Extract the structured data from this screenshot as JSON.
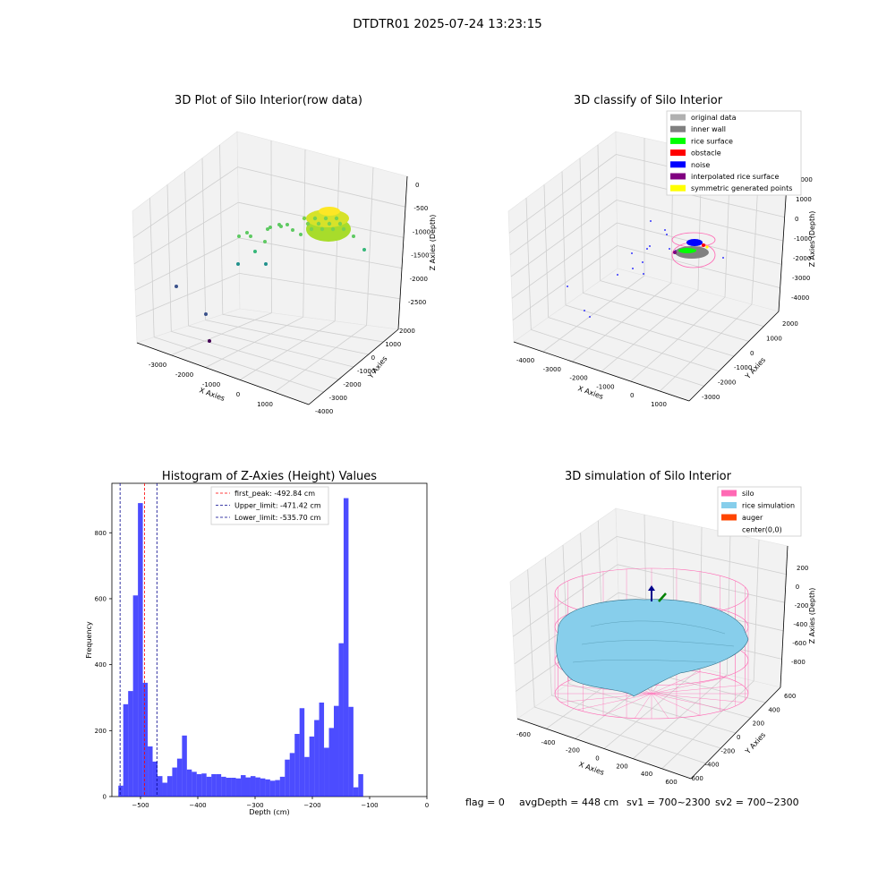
{
  "figure_title": "DTDTR01 2025-07-24 13:23:15",
  "status_line": {
    "flag": "flag = 0",
    "avg_depth": "avgDepth = 448 cm",
    "sv1": "sv1 = 700~2300",
    "sv2": "sv2 = 700~2300"
  },
  "chart_data": [
    {
      "type": "scatter",
      "title": "3D Plot of Silo Interior(row data)",
      "xlabel": "X Axies",
      "ylabel": "Y Axies",
      "zlabel": "Z Axies (Depth)",
      "x_ticks": [
        "-3000",
        "-2000",
        "-1000",
        "0",
        "1000"
      ],
      "y_ticks": [
        "-4000",
        "-3000",
        "-2000",
        "-1000",
        "0",
        "1000",
        "2000"
      ],
      "z_ticks": [
        "0",
        "-500",
        "-1000",
        "-1500",
        "-2000",
        "-2500"
      ],
      "colormap": "viridis",
      "grid": true
    },
    {
      "type": "scatter",
      "title": "3D classify of Silo Interior",
      "xlabel": "X Axies",
      "ylabel": "Y Axies",
      "zlabel": "Z Axies (Depth)",
      "x_ticks": [
        "-4000",
        "-3000",
        "-2000",
        "-1000",
        "0",
        "1000"
      ],
      "y_ticks": [
        "-3000",
        "-2000",
        "-1000",
        "0",
        "1000",
        "2000"
      ],
      "z_ticks": [
        "2000",
        "1000",
        "0",
        "-1000",
        "-2000",
        "-3000",
        "-4000"
      ],
      "legend": [
        {
          "label": "original data",
          "color": "#b0b0b0"
        },
        {
          "label": "inner wall",
          "color": "#808080"
        },
        {
          "label": "rice surface",
          "color": "#00ff00"
        },
        {
          "label": "obstacle",
          "color": "#ff0000"
        },
        {
          "label": "noise",
          "color": "#0000ff"
        },
        {
          "label": "interpolated rice surface",
          "color": "#800080"
        },
        {
          "label": "symmetric generated points",
          "color": "#ffff00"
        }
      ],
      "legend_placement": "top-right",
      "grid": true
    },
    {
      "type": "bar",
      "title": "Histogram of Z-Axies (Height) Values",
      "xlabel": "Depth (cm)",
      "ylabel": "Frequency",
      "xlim": [
        -550,
        0
      ],
      "ylim": [
        0,
        950
      ],
      "x_ticks": [
        -500,
        -400,
        -300,
        -200,
        -100,
        0
      ],
      "y_ticks": [
        0,
        200,
        400,
        600,
        800
      ],
      "bar_color": "#0000ff",
      "bin_width": 8.55,
      "bin_starts": [
        -538.7,
        -530.15,
        -521.6,
        -513.05,
        -504.5,
        -495.95,
        -487.4,
        -478.85,
        -470.3,
        -461.75,
        -453.2,
        -444.65,
        -436.1,
        -427.55,
        -419.0,
        -410.45,
        -401.9,
        -393.35,
        -384.8,
        -376.25,
        -367.7,
        -359.15,
        -350.6,
        -342.05,
        -333.5,
        -324.95,
        -316.4,
        -307.85,
        -299.3,
        -290.75,
        -282.2,
        -273.65,
        -265.1,
        -256.55,
        -248.0,
        -239.45,
        -230.9,
        -222.35,
        -213.8,
        -205.25,
        -196.7,
        -188.15,
        -179.6,
        -171.05,
        -162.5,
        -153.95,
        -145.4,
        -136.85,
        -128.3,
        -119.75,
        -111.2,
        -102.65,
        -94.1,
        -85.55,
        -77.0,
        -68.45,
        -59.9,
        -51.35,
        -42.8,
        -34.25,
        -25.7,
        -17.15,
        -8.6
      ],
      "values": [
        33,
        280,
        320,
        610,
        890,
        345,
        152,
        106,
        62,
        42,
        62,
        88,
        115,
        185,
        82,
        75,
        68,
        70,
        60,
        68,
        68,
        60,
        57,
        57,
        55,
        65,
        58,
        62,
        58,
        55,
        52,
        48,
        50,
        60,
        112,
        132,
        190,
        268,
        120,
        182,
        232,
        285,
        148,
        208,
        275,
        465,
        905,
        272,
        28,
        68,
        0,
        0,
        0,
        0,
        0,
        0,
        0,
        0,
        0,
        0,
        0,
        0,
        0
      ],
      "vlines": [
        {
          "label": "first_peak: -492.84 cm",
          "x": -492.84,
          "color": "#ff0000"
        },
        {
          "label": "Upper_limit: -471.42 cm",
          "x": -471.42,
          "color": "#00008b"
        },
        {
          "label": "Lower_limit: -535.70 cm",
          "x": -535.7,
          "color": "#00008b"
        }
      ],
      "legend_placement": "top-center"
    },
    {
      "type": "surface",
      "title": "3D simulation of Silo Interior",
      "xlabel": "X Axies",
      "ylabel": "Y Axies",
      "zlabel": "Z Axies (Depth)",
      "x_ticks": [
        "-600",
        "-400",
        "-200",
        "0",
        "200",
        "400",
        "600"
      ],
      "y_ticks": [
        "-600",
        "-400",
        "-200",
        "0",
        "200",
        "400",
        "600"
      ],
      "z_ticks": [
        "200",
        "0",
        "-200",
        "-400",
        "-600",
        "-800"
      ],
      "legend": [
        {
          "label": "silo",
          "color": "#ff69b4"
        },
        {
          "label": "rice simulation",
          "color": "#87ceeb"
        },
        {
          "label": "auger",
          "color": "#ff4500"
        },
        {
          "label": "center(0,0)",
          "color": "#ffffff"
        }
      ],
      "legend_placement": "top-right",
      "grid": true
    }
  ]
}
